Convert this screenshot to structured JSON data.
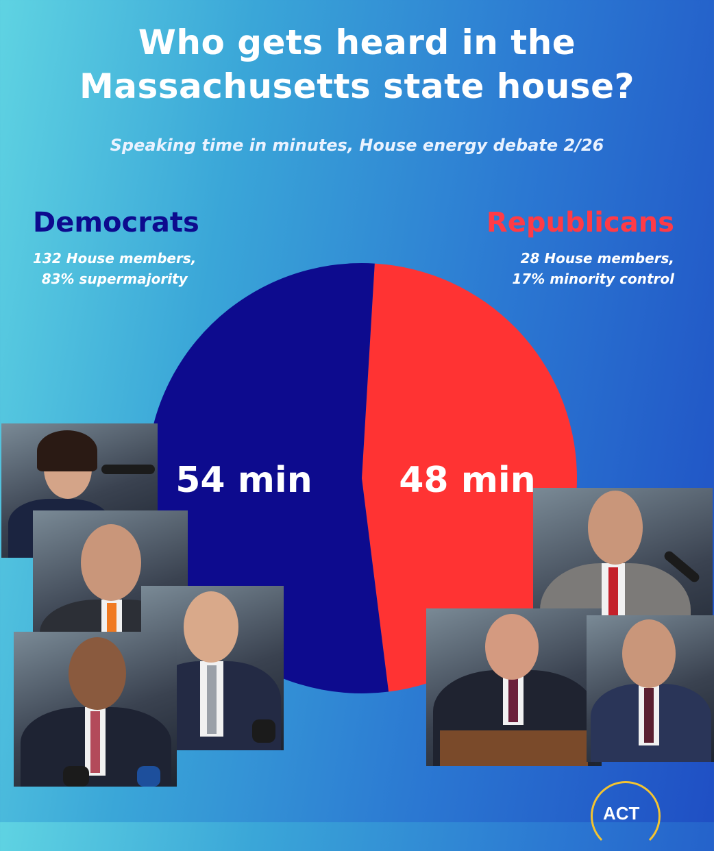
{
  "header": {
    "title_line1": "Who gets heard in the",
    "title_line2": "Massachusetts state house?",
    "subtitle": "Speaking time in minutes, House energy debate 2/26"
  },
  "parties": {
    "democrats": {
      "name": "Democrats",
      "desc_line1": "132 House members,",
      "desc_line2": "83% supermajority"
    },
    "republicans": {
      "name": "Republicans",
      "desc_line1": "28 House members,",
      "desc_line2": "17% minority control"
    }
  },
  "chart_data": {
    "type": "pie",
    "title": "Who gets heard in the Massachusetts state house?",
    "subtitle": "Speaking time in minutes, House energy debate 2/26",
    "categories": [
      "Democrats",
      "Republicans"
    ],
    "values": [
      54,
      48
    ],
    "unit": "min",
    "labels": [
      "54 min",
      "48 min"
    ],
    "colors": [
      "#0d0b8e",
      "#ff3333"
    ]
  },
  "logo": {
    "text": "ACT"
  }
}
